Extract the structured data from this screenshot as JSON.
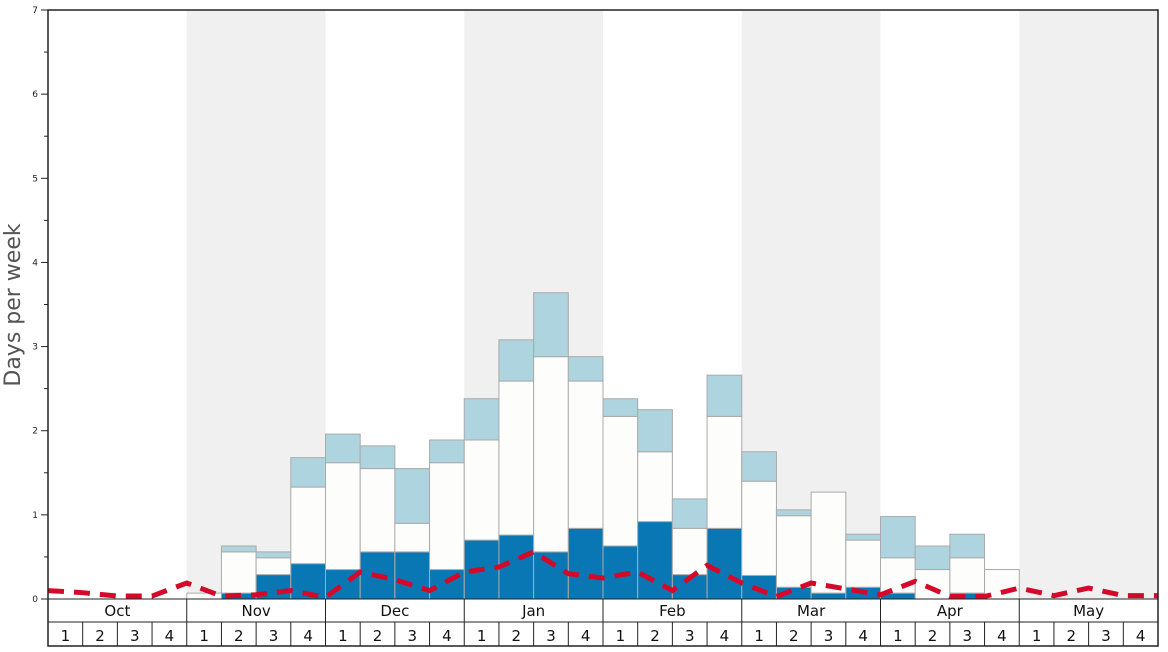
{
  "chart_data": {
    "type": "bar",
    "stacked": true,
    "ylabel": "Days per week",
    "ylim": [
      0,
      7
    ],
    "yticks": [
      "0",
      "1",
      "2",
      "3",
      "4",
      "5",
      "6",
      "7"
    ],
    "months": [
      "Oct",
      "Nov",
      "Dec",
      "Jan",
      "Feb",
      "Mar",
      "Apr",
      "May"
    ],
    "shaded_months": [
      "Nov",
      "Jan",
      "Mar",
      "May"
    ],
    "weeks_per_month": [
      "1",
      "2",
      "3",
      "4"
    ],
    "series": [
      {
        "name": "dark",
        "color": "#0a77b5",
        "values": [
          0,
          0,
          0,
          0,
          0,
          0.07,
          0.29,
          0.42,
          0.35,
          0.56,
          0.56,
          0.35,
          0.7,
          0.76,
          0.56,
          0.84,
          0.63,
          0.92,
          0.29,
          0.84,
          0.28,
          0.14,
          0.07,
          0.14,
          0.07,
          0,
          0.07,
          0,
          0,
          0,
          0,
          0
        ]
      },
      {
        "name": "white",
        "color": "#fdfdfb",
        "values": [
          0,
          0,
          0,
          0,
          0.07,
          0.49,
          0.2,
          0.91,
          1.27,
          0.99,
          0.34,
          1.27,
          1.19,
          1.83,
          2.32,
          1.75,
          1.54,
          0.83,
          0.55,
          1.33,
          1.12,
          0.85,
          1.2,
          0.56,
          0.42,
          0.35,
          0.42,
          0.35,
          0,
          0,
          0,
          0
        ]
      },
      {
        "name": "light",
        "color": "#aed4df",
        "values": [
          0,
          0,
          0,
          0,
          0,
          0.07,
          0.07,
          0.35,
          0.34,
          0.27,
          0.65,
          0.27,
          0.49,
          0.49,
          0.76,
          0.29,
          0.21,
          0.5,
          0.35,
          0.49,
          0.35,
          0.07,
          0,
          0.07,
          0.49,
          0.28,
          0.28,
          0,
          0,
          0,
          0,
          0
        ]
      }
    ],
    "average_line": {
      "name": "average",
      "color": "#d4092a",
      "values": [
        0.1,
        0.075,
        0.035,
        0.035,
        0.19,
        0.035,
        0.05,
        0.1,
        0.02,
        0.32,
        0.23,
        0.1,
        0.32,
        0.38,
        0.56,
        0.3,
        0.25,
        0.32,
        0.1,
        0.4,
        0.19,
        0.03,
        0.19,
        0.12,
        0.05,
        0.21,
        0.03,
        0.03,
        0.13,
        0.04,
        0.13,
        0.04,
        0.04
      ]
    }
  }
}
